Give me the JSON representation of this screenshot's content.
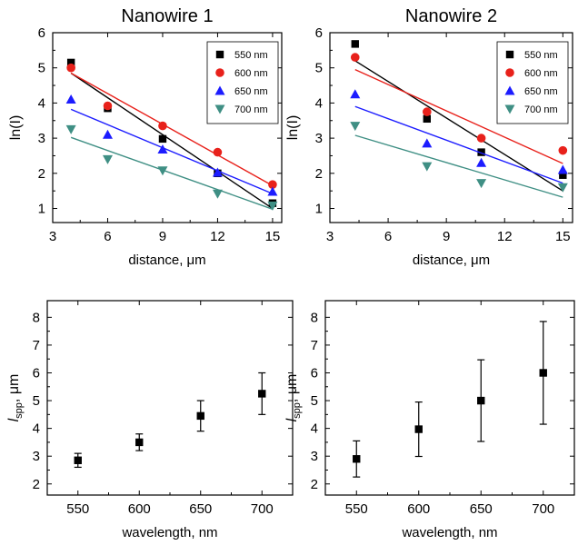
{
  "chart_data": [
    {
      "type": "scatter",
      "title": "Nanowire 1",
      "xlabel": "distance, μm",
      "ylabel": "ln(I)",
      "xlim": [
        3,
        15.5
      ],
      "ylim": [
        0.6,
        6
      ],
      "xticks": [
        "3",
        "6",
        "9",
        "12",
        "15"
      ],
      "yticks": [
        "1",
        "2",
        "3",
        "4",
        "5",
        "6"
      ],
      "legend": "top-right",
      "series": [
        {
          "name": "550 nm",
          "color": "#000000",
          "marker": "square",
          "points": [
            [
              4,
              5.15
            ],
            [
              6,
              3.85
            ],
            [
              9,
              2.98
            ],
            [
              12,
              2.0
            ],
            [
              15,
              1.15
            ]
          ],
          "fit": [
            [
              4,
              4.85
            ],
            [
              15,
              1.0
            ]
          ]
        },
        {
          "name": "600 nm",
          "color": "#e8211b",
          "marker": "circle",
          "points": [
            [
              4,
              5.0
            ],
            [
              6,
              3.92
            ],
            [
              9,
              3.35
            ],
            [
              12,
              2.6
            ],
            [
              15,
              1.68
            ]
          ],
          "fit": [
            [
              4,
              4.85
            ],
            [
              15,
              1.65
            ]
          ]
        },
        {
          "name": "650 nm",
          "color": "#1c1cff",
          "marker": "triangle-up",
          "points": [
            [
              4,
              4.1
            ],
            [
              6,
              3.1
            ],
            [
              9,
              2.68
            ],
            [
              12,
              2.02
            ],
            [
              15,
              1.48
            ]
          ],
          "fit": [
            [
              4,
              3.82
            ],
            [
              15,
              1.42
            ]
          ]
        },
        {
          "name": "700 nm",
          "color": "#3f8f84",
          "marker": "triangle-down",
          "points": [
            [
              4,
              3.25
            ],
            [
              6,
              2.4
            ],
            [
              9,
              2.08
            ],
            [
              12,
              1.42
            ],
            [
              15,
              1.08
            ]
          ],
          "fit": [
            [
              4,
              3.02
            ],
            [
              15,
              0.98
            ]
          ]
        }
      ]
    },
    {
      "type": "scatter",
      "title": "Nanowire 2",
      "xlabel": "distance, μm",
      "ylabel": "ln(I)",
      "xlim": [
        3,
        15.5
      ],
      "ylim": [
        0.6,
        6
      ],
      "xticks": [
        "3",
        "6",
        "9",
        "12",
        "15"
      ],
      "yticks": [
        "1",
        "2",
        "3",
        "4",
        "5",
        "6"
      ],
      "legend": "top-right",
      "series": [
        {
          "name": "550 nm",
          "color": "#000000",
          "marker": "square",
          "points": [
            [
              4.3,
              5.68
            ],
            [
              8,
              3.55
            ],
            [
              10.8,
              2.6
            ],
            [
              15,
              1.95
            ]
          ],
          "fit": [
            [
              4.3,
              5.2
            ],
            [
              15,
              1.5
            ]
          ]
        },
        {
          "name": "600 nm",
          "color": "#e8211b",
          "marker": "circle",
          "points": [
            [
              4.3,
              5.3
            ],
            [
              8,
              3.75
            ],
            [
              10.8,
              3.0
            ],
            [
              15,
              2.65
            ]
          ],
          "fit": [
            [
              4.3,
              4.95
            ],
            [
              15,
              2.28
            ]
          ]
        },
        {
          "name": "650 nm",
          "color": "#1c1cff",
          "marker": "triangle-up",
          "points": [
            [
              4.3,
              4.25
            ],
            [
              8,
              2.85
            ],
            [
              10.8,
              2.3
            ],
            [
              15,
              2.1
            ]
          ],
          "fit": [
            [
              4.3,
              3.9
            ],
            [
              15,
              1.72
            ]
          ]
        },
        {
          "name": "700 nm",
          "color": "#3f8f84",
          "marker": "triangle-down",
          "points": [
            [
              4.3,
              3.35
            ],
            [
              8,
              2.2
            ],
            [
              10.8,
              1.72
            ],
            [
              15,
              1.6
            ]
          ],
          "fit": [
            [
              4.3,
              3.08
            ],
            [
              15,
              1.32
            ]
          ]
        }
      ]
    },
    {
      "type": "scatter",
      "title": "",
      "xlabel": "wavelength, nm",
      "ylabel": "l",
      "ylabel_sub": "spp",
      "ylabel_unit": ", μm",
      "xlim": [
        525,
        725
      ],
      "ylim": [
        1.6,
        8.6
      ],
      "xticks": [
        "550",
        "600",
        "650",
        "700"
      ],
      "yticks": [
        "2",
        "3",
        "4",
        "5",
        "6",
        "7",
        "8"
      ],
      "series": [
        {
          "name": "",
          "color": "#000000",
          "marker": "square",
          "points": [
            [
              550,
              2.85
            ],
            [
              600,
              3.5
            ],
            [
              650,
              4.45
            ],
            [
              700,
              5.25
            ]
          ],
          "errors": [
            0.25,
            0.3,
            0.55,
            0.75
          ]
        }
      ]
    },
    {
      "type": "scatter",
      "title": "",
      "xlabel": "wavelength, nm",
      "ylabel": "l",
      "ylabel_sub": "spp",
      "ylabel_unit": ", μm",
      "xlim": [
        525,
        725
      ],
      "ylim": [
        1.6,
        8.6
      ],
      "xticks": [
        "550",
        "600",
        "650",
        "700"
      ],
      "yticks": [
        "2",
        "3",
        "4",
        "5",
        "6",
        "7",
        "8"
      ],
      "series": [
        {
          "name": "",
          "color": "#000000",
          "marker": "square",
          "points": [
            [
              550,
              2.9
            ],
            [
              600,
              3.97
            ],
            [
              650,
              5.0
            ],
            [
              700,
              6.0
            ]
          ],
          "errors": [
            0.65,
            0.98,
            1.47,
            1.85
          ]
        }
      ]
    }
  ]
}
